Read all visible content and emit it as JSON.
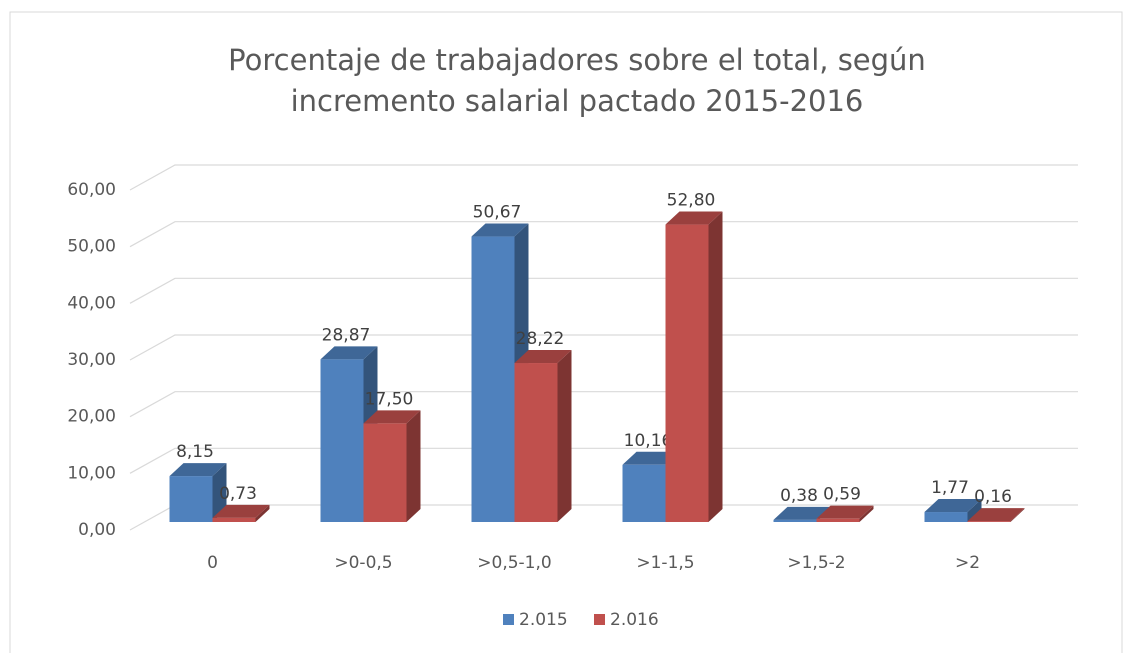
{
  "chart_data": {
    "type": "bar3d",
    "title": [
      "Porcentaje de trabajadores sobre el total, según",
      "incremento salarial pactado 2015-2016"
    ],
    "categories": [
      "0",
      ">0-0,5",
      ">0,5-1,0",
      ">1-1,5",
      ">1,5-2",
      ">2"
    ],
    "series": [
      {
        "name": "2.015",
        "color": "#4f81bd",
        "values": [
          8.15,
          28.87,
          50.67,
          10.16,
          0.38,
          1.77
        ],
        "value_labels": [
          "8,15",
          "28,87",
          "50,67",
          "10,16",
          "0,38",
          "1,77"
        ]
      },
      {
        "name": "2.016",
        "color": "#c0504d",
        "values": [
          0.73,
          17.5,
          28.22,
          52.8,
          0.59,
          0.16
        ],
        "value_labels": [
          "0,73",
          "17,50",
          "28,22",
          "52,80",
          "0,59",
          "0,16"
        ]
      }
    ],
    "ylim": [
      0,
      60
    ],
    "yticks": [
      {
        "value": 0,
        "label": "0,00"
      },
      {
        "value": 10,
        "label": "10,00"
      },
      {
        "value": 20,
        "label": "20,00"
      },
      {
        "value": 30,
        "label": "30,00"
      },
      {
        "value": 40,
        "label": "40,00"
      },
      {
        "value": 50,
        "label": "50,00"
      },
      {
        "value": 60,
        "label": "60,00"
      }
    ],
    "grid": true,
    "legend": "bottom"
  }
}
